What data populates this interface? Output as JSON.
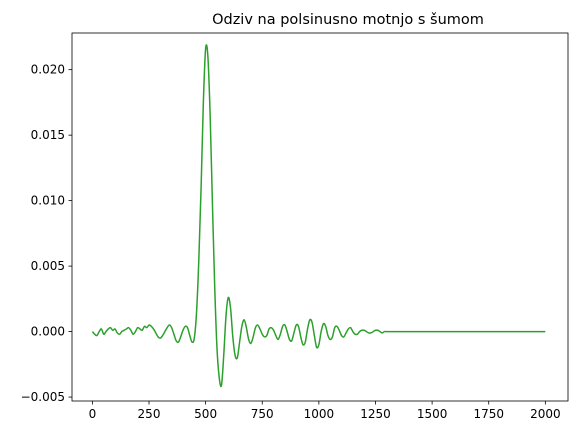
{
  "chart_data": {
    "type": "line",
    "title": "Odziv na polsinusno motnjo s šumom",
    "xlabel": "",
    "ylabel": "",
    "xlim": [
      -90,
      2100
    ],
    "ylim": [
      -0.0053,
      0.0228
    ],
    "grid": false,
    "xticks": [
      0,
      250,
      500,
      750,
      1000,
      1250,
      1500,
      1750,
      2000
    ],
    "xtick_labels": [
      "0",
      "250",
      "500",
      "750",
      "1000",
      "1250",
      "1500",
      "1750",
      "2000"
    ],
    "yticks": [
      -0.005,
      0.0,
      0.005,
      0.01,
      0.015,
      0.02
    ],
    "ytick_labels": [
      "−0.005",
      "0.000",
      "0.005",
      "0.010",
      "0.015",
      "0.020"
    ],
    "series": [
      {
        "color": "#2ca02c",
        "x": [
          0,
          10,
          20,
          30,
          40,
          50,
          60,
          70,
          80,
          90,
          100,
          110,
          120,
          130,
          140,
          150,
          160,
          170,
          180,
          190,
          200,
          210,
          220,
          230,
          240,
          250,
          260,
          270,
          280,
          290,
          300,
          310,
          320,
          330,
          340,
          350,
          360,
          370,
          380,
          390,
          400,
          410,
          420,
          430,
          440,
          450,
          460,
          470,
          480,
          490,
          500,
          510,
          520,
          530,
          540,
          550,
          560,
          570,
          580,
          590,
          600,
          610,
          620,
          630,
          640,
          650,
          660,
          670,
          680,
          690,
          700,
          710,
          720,
          730,
          740,
          750,
          760,
          770,
          780,
          790,
          800,
          810,
          820,
          830,
          840,
          850,
          860,
          870,
          880,
          890,
          900,
          910,
          920,
          930,
          940,
          950,
          960,
          970,
          980,
          990,
          1000,
          1010,
          1020,
          1030,
          1040,
          1050,
          1060,
          1070,
          1080,
          1090,
          1100,
          1110,
          1120,
          1130,
          1140,
          1150,
          1160,
          1170,
          1180,
          1190,
          1200,
          1210,
          1220,
          1230,
          1240,
          1250,
          1260,
          1270,
          1280,
          1290,
          1300,
          1320,
          1340,
          1360,
          1380,
          1400,
          1450,
          1500,
          1600,
          1700,
          1800,
          1900,
          2000
        ],
        "y": [
          0.0,
          -0.0002,
          -0.0003,
          0.0,
          0.0002,
          -0.0002,
          0.0,
          0.0002,
          0.0003,
          0.0001,
          0.0002,
          -0.0001,
          -0.0002,
          0.0,
          0.0001,
          0.0002,
          0.0003,
          0.0001,
          -0.0002,
          0.0,
          0.0003,
          0.0002,
          0.0001,
          0.0004,
          0.0003,
          0.0005,
          0.0004,
          0.0002,
          -0.0001,
          -0.0004,
          -0.0005,
          -0.0003,
          0.0,
          0.0003,
          0.0005,
          0.0003,
          -0.0002,
          -0.0007,
          -0.0008,
          -0.0004,
          0.0001,
          0.0004,
          0.0003,
          -0.0003,
          -0.0008,
          -0.0005,
          0.0015,
          0.0055,
          0.011,
          0.0175,
          0.0216,
          0.021,
          0.0165,
          0.0098,
          0.0035,
          -0.0012,
          -0.0035,
          -0.0041,
          -0.0018,
          0.0012,
          0.0026,
          0.0018,
          -0.0004,
          -0.0018,
          -0.002,
          -0.0008,
          0.0004,
          0.0009,
          0.0003,
          -0.0006,
          -0.0009,
          -0.0004,
          0.0003,
          0.0005,
          0.0002,
          -0.0002,
          -0.0004,
          -0.0003,
          0.0002,
          0.0003,
          0.0001,
          -0.0003,
          -0.0006,
          -0.0002,
          0.0004,
          0.0005,
          0.0,
          -0.0006,
          -0.0007,
          -0.0001,
          0.0005,
          0.0004,
          -0.0004,
          -0.001,
          -0.0008,
          0.0002,
          0.0009,
          0.0007,
          -0.0003,
          -0.0012,
          -0.001,
          0.0,
          0.0006,
          0.0004,
          -0.0003,
          -0.0006,
          -0.0004,
          0.0003,
          0.0004,
          0.0001,
          -0.0003,
          -0.0004,
          -0.0001,
          0.0002,
          0.0003,
          0.0,
          -0.0002,
          -0.0002,
          0.0,
          0.0001,
          0.0001,
          0.0,
          -0.0001,
          -0.0001,
          0.0,
          0.0001,
          0.0001,
          0.0,
          -0.0001,
          0.0,
          0.0,
          0.0,
          0.0,
          0.0,
          0.0,
          0.0,
          0.0,
          0.0,
          0.0,
          0.0,
          0.0,
          0.0,
          0.0
        ]
      }
    ]
  }
}
